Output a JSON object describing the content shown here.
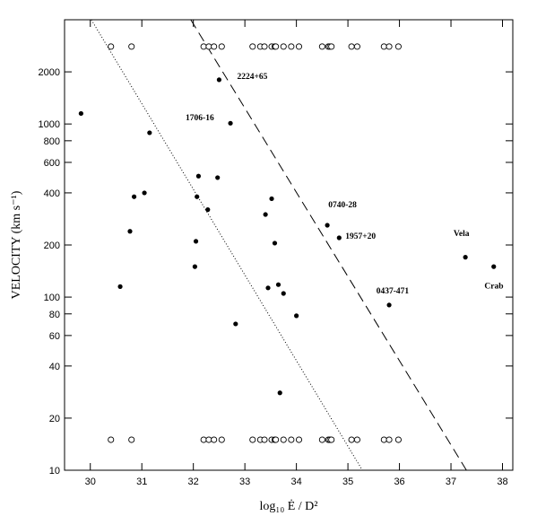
{
  "chart_data": {
    "type": "scatter",
    "title": "",
    "xlabel": "log₁₀ Ė / D²",
    "ylabel": "VELOCITY  (km s⁻¹)",
    "xlim": [
      29.5,
      38.2
    ],
    "ylim": [
      10,
      4000
    ],
    "y_scale": "log",
    "x_ticks": [
      30,
      31,
      32,
      33,
      34,
      35,
      36,
      37,
      38
    ],
    "x_tick_labels": [
      "30",
      "31",
      "32",
      "33",
      "34",
      "35",
      "36",
      "37",
      "38"
    ],
    "y_ticks": [
      10,
      20,
      40,
      60,
      80,
      100,
      200,
      400,
      600,
      800,
      1000,
      2000
    ],
    "y_tick_labels": [
      "10",
      "20",
      "40",
      "60",
      "80",
      "100",
      "200",
      "400",
      "600",
      "800",
      "1000",
      "2000"
    ],
    "grid": false,
    "series": [
      {
        "marker": "filled-circle",
        "x": [
          29.82,
          30.58,
          30.77,
          30.85,
          31.05,
          31.15,
          32.03,
          32.05,
          32.07,
          32.1,
          32.28,
          32.47,
          32.5,
          32.72,
          32.82,
          33.4,
          33.45,
          33.52,
          33.58,
          33.65,
          33.68,
          33.75,
          34.0,
          34.6,
          34.83,
          35.8,
          37.28,
          37.83
        ],
        "y": [
          1150,
          115,
          240,
          380,
          400,
          890,
          150,
          210,
          380,
          500,
          320,
          490,
          1800,
          1010,
          70,
          300,
          113,
          370,
          205,
          118,
          28,
          105,
          78,
          260,
          220,
          90,
          170,
          150
        ]
      },
      {
        "marker": "open-circle",
        "x": [
          30.4,
          30.8,
          32.2,
          32.3,
          32.4,
          32.55,
          33.15,
          33.3,
          33.38,
          33.52,
          33.58,
          33.6,
          33.75,
          33.9,
          34.05,
          34.5,
          34.62,
          34.65,
          34.68,
          35.07,
          35.18,
          35.7,
          35.8,
          35.98
        ],
        "y_upper": 2800,
        "y_lower": 15
      }
    ],
    "lines": [
      {
        "style": "dotted",
        "x": [
          30.02,
          35.28
        ],
        "y": [
          4000,
          10
        ]
      },
      {
        "style": "dashed",
        "x": [
          31.95,
          37.3
        ],
        "y": [
          4000,
          10
        ]
      }
    ],
    "annotations": [
      {
        "text": "2224+65",
        "x": 32.85,
        "y": 1820
      },
      {
        "text": "1706-16",
        "x": 31.85,
        "y": 1050
      },
      {
        "text": "0740-28",
        "x": 34.62,
        "y": 330
      },
      {
        "text": "1957+20",
        "x": 34.95,
        "y": 218
      },
      {
        "text": "0437-471",
        "x": 35.55,
        "y": 105
      },
      {
        "text": "Vela",
        "x": 37.05,
        "y": 225
      },
      {
        "text": "Crab",
        "x": 37.65,
        "y": 112
      }
    ]
  }
}
